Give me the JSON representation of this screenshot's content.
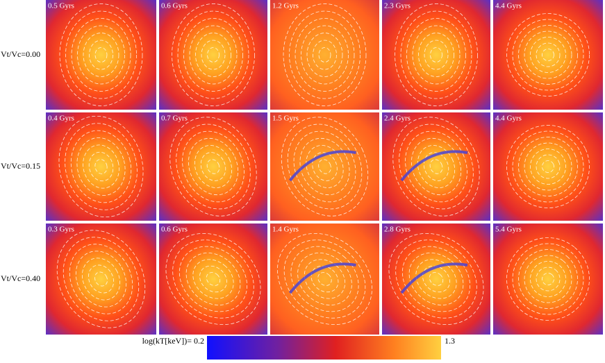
{
  "rows": [
    {
      "label": "Vt/Vc=0.00",
      "panels": [
        "0.5 Gyrs",
        "0.6 Gyrs",
        "1.2 Gyrs",
        "2.3 Gyrs",
        "4.4 Gyrs"
      ]
    },
    {
      "label": "Vt/Vc=0.15",
      "panels": [
        "0.4 Gyrs",
        "0.7 Gyrs",
        "1.5 Gyrs",
        "2.4 Gyrs",
        "4.4 Gyrs"
      ]
    },
    {
      "label": "Vt/Vc=0.40",
      "panels": [
        "0.3 Gyrs",
        "0.6 Gyrs",
        "1.4 Gyrs",
        "2.8 Gyrs",
        "5.4 Gyrs"
      ]
    }
  ],
  "colorbar": {
    "min_label": "log(kT[keV])= 0.2",
    "max_label": "1.3"
  }
}
